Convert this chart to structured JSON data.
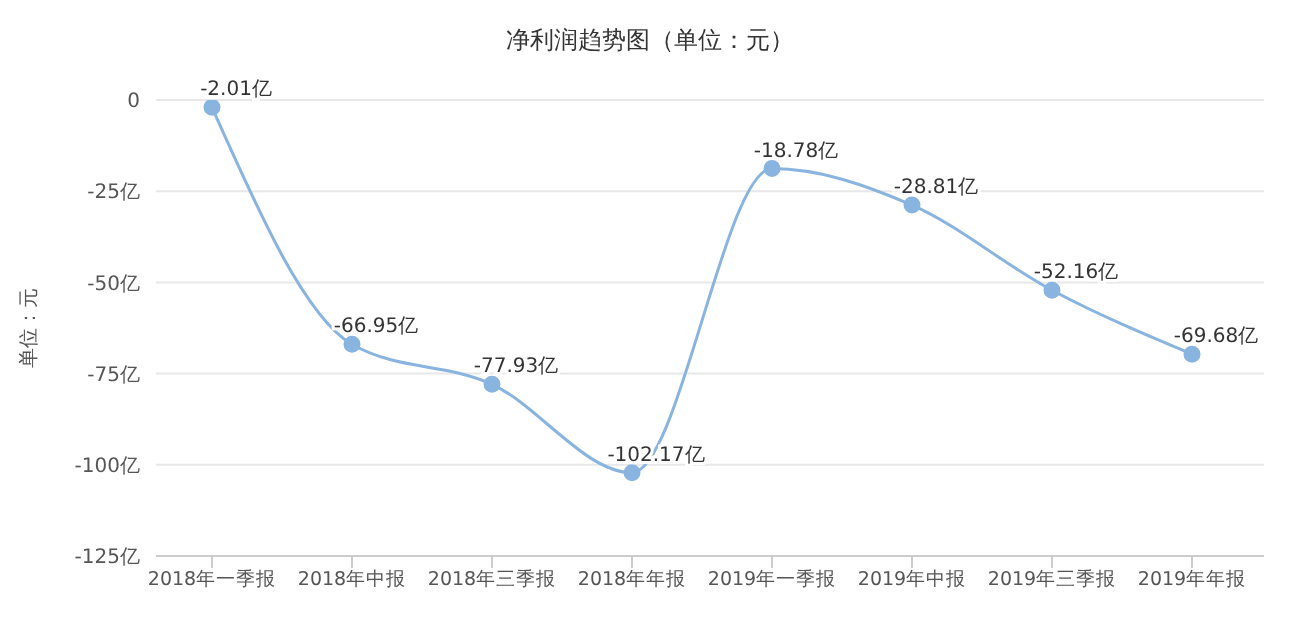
{
  "chart_data": {
    "type": "line",
    "title": "净利润趋势图（单位：元）",
    "ylabel": "单位：元",
    "categories": [
      "2018年一季报",
      "2018年中报",
      "2018年三季报",
      "2018年年报",
      "2019年一季报",
      "2019年中报",
      "2019年三季报",
      "2019年年报"
    ],
    "series": [
      {
        "color": "#8ab4e0",
        "values": [
          -2.01,
          -66.95,
          -77.93,
          -102.17,
          -18.78,
          -28.81,
          -52.16,
          -69.68
        ],
        "value_labels": [
          "-2.01亿",
          "-66.95亿",
          "-77.93亿",
          "-102.17亿",
          "-18.78亿",
          "-28.81亿",
          "-52.16亿",
          "-69.68亿"
        ]
      }
    ],
    "ylim": [
      -125,
      0
    ],
    "yticks": [
      {
        "value": -125,
        "label": "-125亿"
      },
      {
        "value": -100,
        "label": "-100亿"
      },
      {
        "value": -75,
        "label": "-75亿"
      },
      {
        "value": -50,
        "label": "-50亿"
      },
      {
        "value": -25,
        "label": "-25亿"
      },
      0
    ],
    "grid": "y",
    "marker": "circle",
    "line_style": "solid",
    "legend": false
  }
}
